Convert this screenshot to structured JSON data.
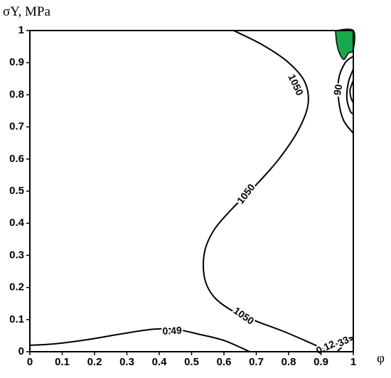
{
  "chart_data": {
    "type": "contour",
    "xlabel": "φ",
    "ylabel": "σY, MPa",
    "xlim": [
      0,
      1
    ],
    "ylim": [
      0,
      1
    ],
    "xticks": [
      0,
      0.1,
      0.2,
      0.3,
      0.4,
      0.5,
      0.6,
      0.7,
      0.8,
      0.9,
      1
    ],
    "yticks": [
      0,
      0.1,
      0.2,
      0.3,
      0.4,
      0.5,
      0.6,
      0.7,
      0.8,
      0.9,
      1
    ],
    "xtick_labels": [
      "0",
      "0.1",
      "0.2",
      "0.3",
      "0.4",
      "0.5",
      "0.6",
      "0.7",
      "0.8",
      "0.9",
      "1"
    ],
    "ytick_labels": [
      "0",
      "0.1",
      "0.2",
      "0.3",
      "0.4",
      "0.5",
      "0.6",
      "0.7",
      "0.8",
      "0.9",
      "1"
    ],
    "grid": false,
    "colors": {
      "contour": "#000000",
      "region_fill": "#1aa64a"
    },
    "contours": [
      {
        "level_label": "1050",
        "points": [
          [
            0.63,
            1.0
          ],
          [
            0.72,
            0.955
          ],
          [
            0.8,
            0.9
          ],
          [
            0.85,
            0.84
          ],
          [
            0.86,
            0.77
          ],
          [
            0.83,
            0.69
          ],
          [
            0.77,
            0.6
          ],
          [
            0.7,
            0.52
          ],
          [
            0.63,
            0.45
          ],
          [
            0.57,
            0.38
          ],
          [
            0.54,
            0.31
          ],
          [
            0.54,
            0.23
          ],
          [
            0.57,
            0.17
          ],
          [
            0.63,
            0.125
          ],
          [
            0.7,
            0.095
          ],
          [
            0.78,
            0.065
          ],
          [
            0.85,
            0.035
          ],
          [
            0.9,
            0.012
          ],
          [
            0.92,
            0.0
          ]
        ]
      },
      {
        "level_label": "0.49",
        "points": [
          [
            0.0,
            0.02
          ],
          [
            0.08,
            0.025
          ],
          [
            0.18,
            0.038
          ],
          [
            0.28,
            0.055
          ],
          [
            0.38,
            0.07
          ],
          [
            0.45,
            0.07
          ],
          [
            0.52,
            0.055
          ],
          [
            0.6,
            0.035
          ],
          [
            0.68,
            0.0
          ]
        ]
      },
      {
        "level_label": "0.12",
        "points": [
          [
            0.9,
            0.0
          ],
          [
            0.92,
            0.012
          ],
          [
            0.95,
            0.025
          ],
          [
            0.98,
            0.04
          ],
          [
            1.0,
            0.045
          ]
        ]
      },
      {
        "level_label": "33",
        "points": [
          [
            0.95,
            0.0
          ],
          [
            0.97,
            0.02
          ],
          [
            0.99,
            0.035
          ],
          [
            1.0,
            0.04
          ]
        ]
      },
      {
        "level_label": "90",
        "points": [
          [
            1.0,
            0.92
          ],
          [
            0.975,
            0.9
          ],
          [
            0.955,
            0.85
          ],
          [
            0.955,
            0.78
          ],
          [
            0.97,
            0.72
          ],
          [
            1.0,
            0.68
          ]
        ]
      },
      {
        "level_label": "",
        "points": [
          [
            1.0,
            0.88
          ],
          [
            0.985,
            0.84
          ],
          [
            0.98,
            0.79
          ],
          [
            0.99,
            0.75
          ],
          [
            1.0,
            0.74
          ]
        ]
      },
      {
        "level_label": "",
        "points": [
          [
            1.0,
            0.845
          ],
          [
            0.99,
            0.815
          ],
          [
            0.993,
            0.79
          ],
          [
            1.0,
            0.775
          ]
        ]
      }
    ],
    "contour_labels": [
      {
        "text": "1050",
        "x": 0.82,
        "y": 0.83,
        "angle": 65
      },
      {
        "text": "1050",
        "x": 0.67,
        "y": 0.49,
        "angle": -52
      },
      {
        "text": "1050",
        "x": 0.66,
        "y": 0.11,
        "angle": 35
      },
      {
        "text": "0.49",
        "x": 0.44,
        "y": 0.063,
        "angle": -3
      },
      {
        "text": "0.12",
        "x": 0.915,
        "y": 0.012,
        "angle": -25
      },
      {
        "text": "33",
        "x": 0.97,
        "y": 0.03,
        "angle": -25
      },
      {
        "text": "90",
        "x": 0.955,
        "y": 0.815,
        "angle": -80
      }
    ],
    "regions": [
      {
        "fill": "#1aa64a",
        "points": [
          [
            0.945,
            1.0
          ],
          [
            1.0,
            1.0
          ],
          [
            1.0,
            0.94
          ],
          [
            0.985,
            0.93
          ],
          [
            0.97,
            0.91
          ],
          [
            0.955,
            0.935
          ],
          [
            0.948,
            0.965
          ]
        ]
      }
    ]
  }
}
